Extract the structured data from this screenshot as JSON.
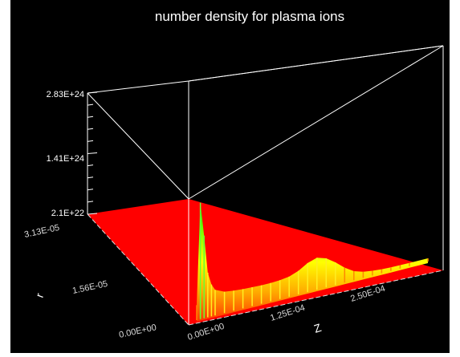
{
  "chart_data": {
    "type": "surface",
    "title": "number density for plasma ions",
    "zlabel": "",
    "xlabel": "Z",
    "ylabel": "r",
    "z_axis": {
      "min": 2.1e+22,
      "max": 2.83e+24,
      "ticks": [
        "2.1E+22",
        "1.41E+24",
        "2.83E+24"
      ]
    },
    "x_axis": {
      "min": 0,
      "max": 0.00025,
      "ticks": [
        "0.00E+00",
        "1.25E-04",
        "2.50E-04"
      ]
    },
    "y_axis": {
      "min": 0,
      "max": 3.13e-05,
      "ticks": [
        "0.00E+00",
        "1.56E-05",
        "3.13E-05"
      ]
    },
    "colors": {
      "background": "#000000",
      "floor": "#ff0000",
      "frame": "#ffffff",
      "peak_low": "#ff3300",
      "peak_mid": "#ffff00",
      "peak_high": "#00ff00"
    },
    "profile_on_axis": {
      "z": [
        0.0,
        4e-06,
        8e-06,
        1.2e-05,
        1.6e-05,
        2e-05,
        3e-05,
        4e-05,
        5e-05,
        6e-05,
        7e-05,
        8e-05,
        9e-05,
        0.0001,
        0.00011,
        0.00012,
        0.00013,
        0.00014,
        0.00015,
        0.00016,
        0.00017,
        0.00018,
        0.00019,
        0.0002,
        0.00021,
        0.00022,
        0.00023,
        0.00025
      ],
      "density": [
        3e+23,
        2.7e+24,
        1.9e+24,
        1e+24,
        7e+23,
        5.5e+23,
        4.5e+23,
        4.2e+23,
        4e+23,
        3.9e+23,
        3.8e+23,
        3.8e+23,
        3.9e+23,
        4.2e+23,
        5e+23,
        6.3e+23,
        7e+23,
        6.3e+23,
        4.8e+23,
        3e+23,
        1.6e+23,
        9e+22,
        6e+22,
        4e+22,
        3e+22,
        2.5e+22,
        2.2e+22,
        2.1e+22
      ]
    }
  }
}
